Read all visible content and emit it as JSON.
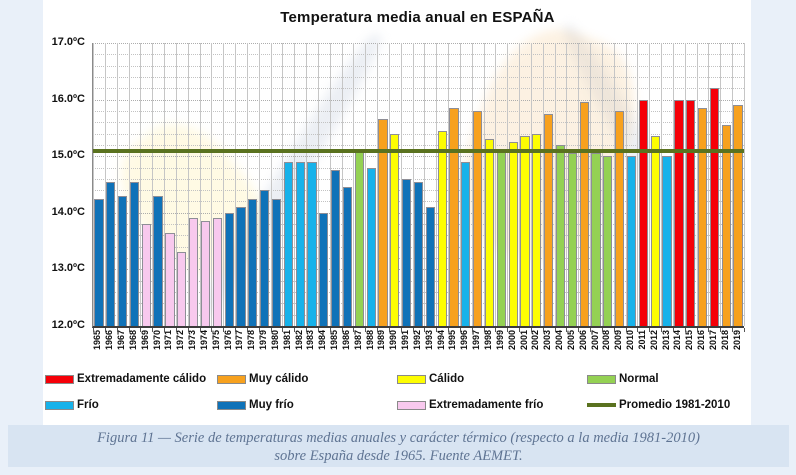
{
  "title": "Temperatura media anual en ESPAÑA",
  "caption": {
    "line1": "Figura 11 — Serie de temperaturas medias anuales y carácter térmico (respecto a la media 1981-2010)",
    "line2": "sobre España desde 1965. Fuente AEMET."
  },
  "legend": {
    "rows": [
      [
        {
          "id": "extremadamente-calido",
          "label": "Extremadamente cálido",
          "type": "swatch",
          "color": "#f50008"
        },
        {
          "id": "muy-calido",
          "label": "Muy cálido",
          "type": "swatch",
          "color": "#f7a11e"
        },
        {
          "id": "calido",
          "label": "Cálido",
          "type": "swatch",
          "color": "#fdfd02"
        },
        {
          "id": "normal",
          "label": "Normal",
          "type": "swatch",
          "color": "#94d153"
        }
      ],
      [
        {
          "id": "frio",
          "label": "Frío",
          "type": "swatch",
          "color": "#17b2ea"
        },
        {
          "id": "muy-frio",
          "label": "Muy frío",
          "type": "swatch",
          "color": "#0f72b8"
        },
        {
          "id": "extremadamente-frio",
          "label": "Extremadamente frío",
          "type": "swatch",
          "color": "#f8c9ee"
        },
        {
          "id": "promedio-1981-2010",
          "label": "Promedio 1981-2010",
          "type": "line",
          "color": "#5a721f"
        }
      ]
    ]
  },
  "chart_data": {
    "type": "bar",
    "title": "Temperatura media anual en ESPAÑA",
    "xlabel": "",
    "ylabel": "",
    "ylim": [
      12.0,
      17.0
    ],
    "ytick_step": 1.0,
    "minor_grid_step": 0.2,
    "grid": true,
    "legend_position": "bottom",
    "y_ticks": [
      {
        "value": 17.0,
        "label": "17.0ºC"
      },
      {
        "value": 16.0,
        "label": "16.0ºC"
      },
      {
        "value": 15.0,
        "label": "15.0ºC"
      },
      {
        "value": 14.0,
        "label": "14.0ºC"
      },
      {
        "value": 13.0,
        "label": "13.0ºC"
      },
      {
        "value": 12.0,
        "label": "12.0ºC"
      }
    ],
    "reference_line": {
      "label": "Promedio 1981-2010",
      "value": 15.1,
      "color": "#5a721f"
    },
    "palette": {
      "Extremadamente cálido": "#f50008",
      "Muy cálido": "#f7a11e",
      "Cálido": "#fdfd02",
      "Normal": "#94d153",
      "Frío": "#17b2ea",
      "Muy frío": "#0f72b8",
      "Extremadamente frío": "#f8c9ee"
    },
    "categories": [
      "1965",
      "1966",
      "1967",
      "1968",
      "1969",
      "1970",
      "1971",
      "1972",
      "1973",
      "1974",
      "1975",
      "1976",
      "1977",
      "1978",
      "1979",
      "1980",
      "1981",
      "1982",
      "1983",
      "1984",
      "1985",
      "1986",
      "1987",
      "1988",
      "1989",
      "1990",
      "1991",
      "1992",
      "1993",
      "1994",
      "1995",
      "1996",
      "1997",
      "1998",
      "1999",
      "2000",
      "2001",
      "2002",
      "2003",
      "2004",
      "2005",
      "2006",
      "2007",
      "2008",
      "2009",
      "2010",
      "2011",
      "2012",
      "2013",
      "2014",
      "2015",
      "2016",
      "2017",
      "2018",
      "2019"
    ],
    "values": [
      14.25,
      14.55,
      14.3,
      14.55,
      13.8,
      14.3,
      13.65,
      13.3,
      13.9,
      13.85,
      13.9,
      14.0,
      14.1,
      14.25,
      14.4,
      14.25,
      14.9,
      14.9,
      14.9,
      14.0,
      14.75,
      14.45,
      15.1,
      14.8,
      15.65,
      15.4,
      14.6,
      14.55,
      14.1,
      15.45,
      15.85,
      14.9,
      15.8,
      15.3,
      15.1,
      15.25,
      15.35,
      15.4,
      15.75,
      15.2,
      15.05,
      15.95,
      15.05,
      15.0,
      15.8,
      15.0,
      16.0,
      15.35,
      15.0,
      16.0,
      16.0,
      15.85,
      16.2,
      15.55,
      15.9
    ],
    "characters": [
      "Muy frío",
      "Muy frío",
      "Muy frío",
      "Muy frío",
      "Extremadamente frío",
      "Muy frío",
      "Extremadamente frío",
      "Extremadamente frío",
      "Extremadamente frío",
      "Extremadamente frío",
      "Extremadamente frío",
      "Muy frío",
      "Muy frío",
      "Muy frío",
      "Muy frío",
      "Muy frío",
      "Frío",
      "Frío",
      "Frío",
      "Muy frío",
      "Muy frío",
      "Muy frío",
      "Normal",
      "Frío",
      "Muy cálido",
      "Cálido",
      "Muy frío",
      "Muy frío",
      "Muy frío",
      "Cálido",
      "Muy cálido",
      "Frío",
      "Muy cálido",
      "Cálido",
      "Normal",
      "Cálido",
      "Cálido",
      "Cálido",
      "Muy cálido",
      "Normal",
      "Normal",
      "Muy cálido",
      "Normal",
      "Normal",
      "Muy cálido",
      "Frío",
      "Extremadamente cálido",
      "Cálido",
      "Frío",
      "Extremadamente cálido",
      "Extremadamente cálido",
      "Muy cálido",
      "Extremadamente cálido",
      "Muy cálido",
      "Muy cálido"
    ]
  },
  "colors": {
    "page_bg": "#e9f0f9",
    "chart_bg": "#ffffff",
    "caption_bg": "#d8e4f2",
    "caption_text": "#5f7493"
  }
}
